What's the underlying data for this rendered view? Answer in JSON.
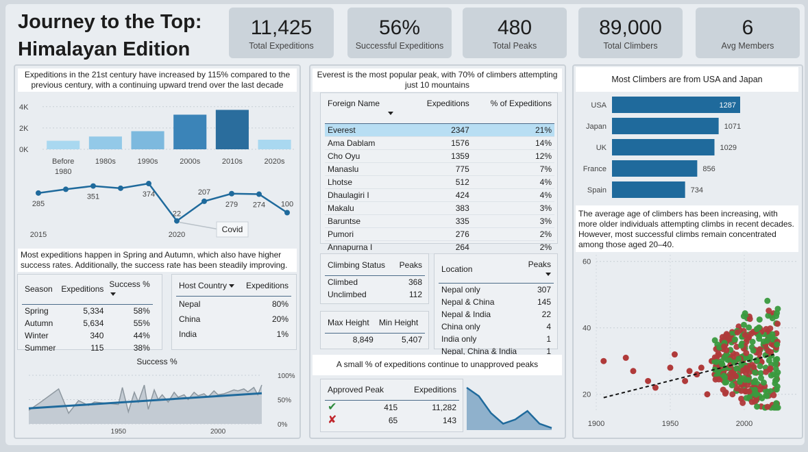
{
  "title_line1": "Journey to the Top:",
  "title_line2": "Himalayan Edition",
  "kpis": [
    {
      "value": "11,425",
      "label": "Total Expeditions"
    },
    {
      "value": "56%",
      "label": "Successful Expeditions"
    },
    {
      "value": "480",
      "label": "Total Peaks"
    },
    {
      "value": "89,000",
      "label": "Total Climbers"
    },
    {
      "value": "6",
      "label": "Avg Members"
    }
  ],
  "left": {
    "note": "Expeditions in the 21st century have increased by 115% compared to the previous century, with a continuing upward trend over the last decade",
    "season_note": "Most expeditions happen in Spring and Autumn, which also have higher success rates. Additionally, the success rate has been steadily improving.",
    "season_table": {
      "headers": [
        "Season",
        "Expeditions",
        "Success %"
      ],
      "rows": [
        [
          "Spring",
          "5,334",
          "58%"
        ],
        [
          "Autumn",
          "5,634",
          "55%"
        ],
        [
          "Winter",
          "340",
          "44%"
        ],
        [
          "Summer",
          "115",
          "38%"
        ]
      ]
    },
    "host_table": {
      "headers": [
        "Host Country",
        "Expeditions"
      ],
      "rows": [
        [
          "Nepal",
          "80%"
        ],
        [
          "China",
          "20%"
        ],
        [
          "India",
          "1%"
        ]
      ]
    }
  },
  "middle": {
    "note": "Everest is the most popular peak, with 70% of climbers attempting just 10 mountains",
    "peaks_table": {
      "headers": [
        "Foreign Name",
        "Expeditions",
        "% of Expeditions"
      ],
      "rows": [
        [
          "Everest",
          "2347",
          "21%"
        ],
        [
          "Ama Dablam",
          "1576",
          "14%"
        ],
        [
          "Cho Oyu",
          "1359",
          "12%"
        ],
        [
          "Manaslu",
          "775",
          "7%"
        ],
        [
          "Lhotse",
          "512",
          "4%"
        ],
        [
          "Dhaulagiri I",
          "424",
          "4%"
        ],
        [
          "Makalu",
          "383",
          "3%"
        ],
        [
          "Baruntse",
          "335",
          "3%"
        ],
        [
          "Pumori",
          "276",
          "2%"
        ],
        [
          "Annapurna I",
          "264",
          "2%"
        ]
      ]
    },
    "status_table": {
      "headers": [
        "Climbing Status",
        "Peaks"
      ],
      "rows": [
        [
          "Climbed",
          "368"
        ],
        [
          "Unclimbed",
          "112"
        ]
      ]
    },
    "height_table": {
      "headers": [
        "Max Height",
        "Min Height"
      ],
      "row": [
        "8,849",
        "5,407"
      ]
    },
    "location_table": {
      "headers": [
        "Location",
        "Peaks"
      ],
      "rows": [
        [
          "Nepal only",
          "307"
        ],
        [
          "Nepal & China",
          "145"
        ],
        [
          "Nepal & India",
          "22"
        ],
        [
          "China only",
          "4"
        ],
        [
          "India only",
          "1"
        ],
        [
          "Nepal, China & India",
          "1"
        ]
      ]
    },
    "unapproved_note": "A small % of expeditions continue to unapproved peaks",
    "approved_table": {
      "headers": [
        "Approved Peak",
        "Expeditions"
      ],
      "rows": [
        [
          "415",
          "11,282"
        ],
        [
          "65",
          "143"
        ]
      ],
      "icons": [
        "check-icon",
        "cross-icon"
      ],
      "icon_colors": [
        "#2e8b3c",
        "#c0272d"
      ]
    }
  },
  "right": {
    "nations_note": "Most Climbers are from USA and Japan",
    "age_note": "The average age of climbers has been increasing, with more older individuals attempting climbs in recent decades. However, most successful climbs remain concentrated among those aged 20–40."
  },
  "colors": {
    "accent": "#1f6a9c",
    "bar_light": "#a8d6ef",
    "success": "#2e8b3c",
    "fail": "#b03a3a",
    "area": "#8fb1cc"
  },
  "chart_data": [
    {
      "type": "bar",
      "categories": [
        "Before 1980",
        "1980s",
        "1990s",
        "2000s",
        "2010s",
        "2020s"
      ],
      "values": [
        800,
        1200,
        1700,
        3250,
        3700,
        900
      ],
      "ylim": [
        0,
        4500
      ],
      "yticks": [
        "0K",
        "2K",
        "4K"
      ]
    },
    {
      "type": "line",
      "x": [
        2015,
        2016,
        2017,
        2018,
        2019,
        2020,
        2021,
        2022,
        2023,
        2024
      ],
      "values": [
        285,
        320,
        351,
        330,
        374,
        22,
        207,
        279,
        274,
        100
      ],
      "labels": [
        "285",
        "",
        "351",
        "",
        "374",
        "22",
        "207",
        "279",
        "274",
        "100"
      ],
      "x_ticks": [
        "2015",
        "2020"
      ],
      "annotation": "Covid"
    },
    {
      "type": "line",
      "title": "Success %",
      "x_ticks": [
        "1950",
        "2000"
      ],
      "y_ticks": [
        "100%",
        "50%",
        "0%"
      ],
      "x": [
        1905,
        1910,
        1920,
        1925,
        1930,
        1935,
        1938,
        1950,
        1952,
        1955,
        1958,
        1960,
        1963,
        1965,
        1968,
        1970,
        1972,
        1975,
        1978,
        1980,
        1983,
        1985,
        1988,
        1990,
        1993,
        1995,
        1998,
        2000,
        2003,
        2005,
        2008,
        2010,
        2013,
        2015,
        2018,
        2020,
        2022
      ],
      "values": [
        28,
        42,
        72,
        22,
        48,
        38,
        45,
        40,
        75,
        25,
        65,
        45,
        80,
        30,
        70,
        50,
        60,
        45,
        65,
        55,
        60,
        50,
        65,
        58,
        62,
        55,
        68,
        60,
        62,
        65,
        70,
        68,
        72,
        66,
        75,
        60,
        80
      ],
      "trend": [
        32,
        63
      ]
    },
    {
      "type": "bar",
      "title": "Most Climbers are from USA and Japan",
      "categories": [
        "USA",
        "Japan",
        "UK",
        "France",
        "Spain"
      ],
      "values": [
        1287,
        1071,
        1029,
        856,
        734
      ]
    },
    {
      "type": "area",
      "values": [
        100,
        80,
        40,
        15,
        25,
        45,
        15,
        5
      ]
    },
    {
      "type": "scatter",
      "x_ticks": [
        "1900",
        "1950",
        "2000"
      ],
      "y_ticks": [
        "60",
        "40",
        "20"
      ],
      "xlim": [
        1900,
        2025
      ],
      "ylim": [
        15,
        62
      ],
      "series": [
        {
          "name": "",
          "color": "#b03a3a"
        },
        {
          "name": "",
          "color": "#3a9a3e"
        }
      ],
      "trend": [
        [
          1905,
          19
        ],
        [
          2020,
          32
        ]
      ]
    }
  ]
}
